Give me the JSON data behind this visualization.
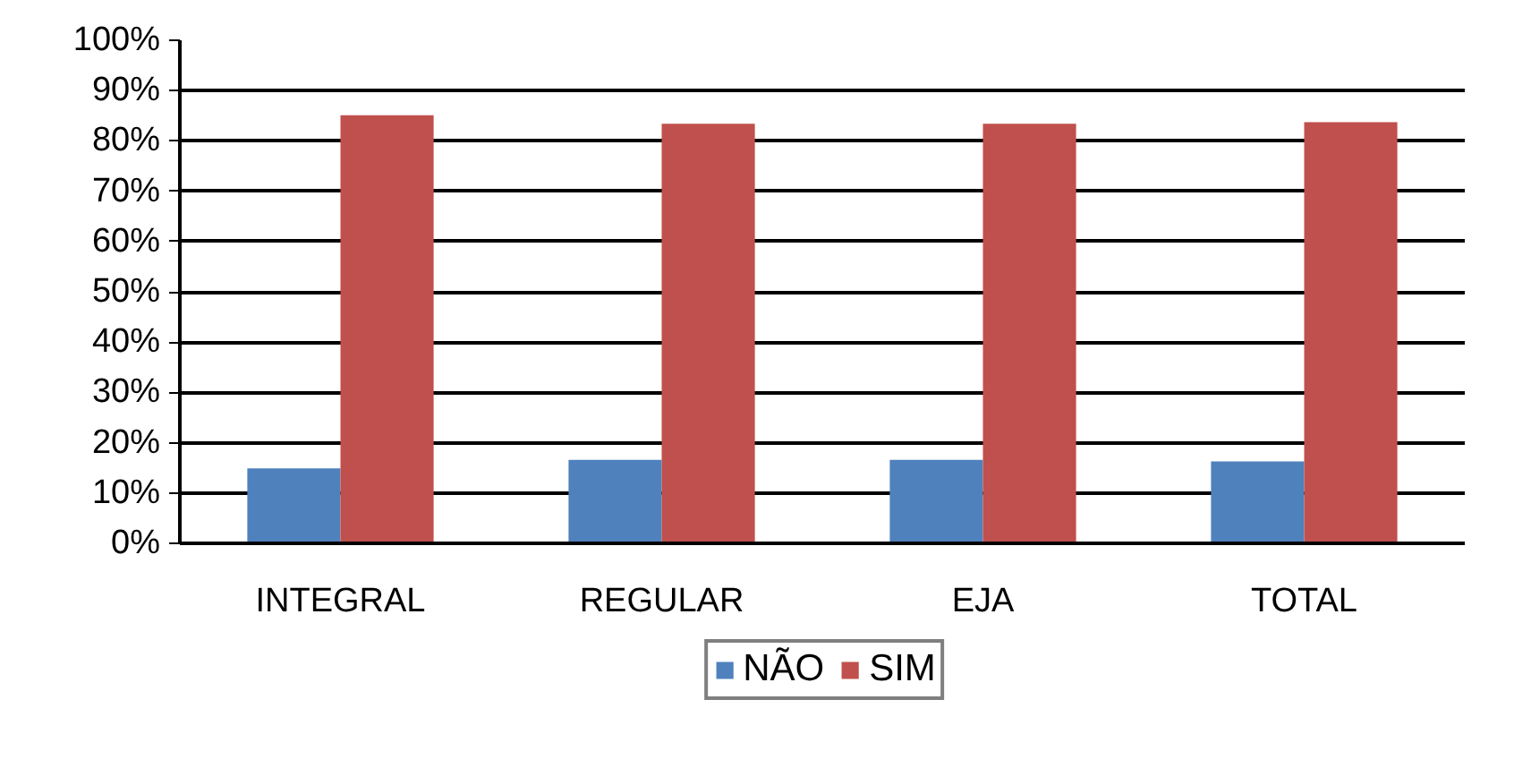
{
  "chart_data": {
    "type": "bar",
    "categories": [
      "INTEGRAL",
      "REGULAR",
      "EJA",
      "TOTAL"
    ],
    "series": [
      {
        "name": "NÃO",
        "color": "#4f81bd",
        "values": [
          14.9,
          16.6,
          16.6,
          16.3
        ]
      },
      {
        "name": "SIM",
        "color": "#c0504d",
        "values": [
          85.1,
          83.4,
          83.4,
          83.7
        ]
      }
    ],
    "ylim": [
      0,
      100
    ],
    "yticks": [
      {
        "value": 0,
        "label": "0%"
      },
      {
        "value": 10,
        "label": "10%"
      },
      {
        "value": 20,
        "label": "20%"
      },
      {
        "value": 30,
        "label": "30%"
      },
      {
        "value": 40,
        "label": "40%"
      },
      {
        "value": 50,
        "label": "50%"
      },
      {
        "value": 60,
        "label": "60%"
      },
      {
        "value": 70,
        "label": "70%"
      },
      {
        "value": 80,
        "label": "80%"
      },
      {
        "value": 90,
        "label": "90%"
      },
      {
        "value": 100,
        "label": "100%"
      }
    ],
    "grid": "y",
    "legend": "bottom"
  }
}
